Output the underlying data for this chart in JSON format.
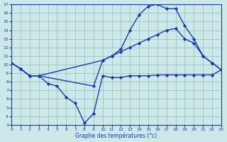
{
  "xlabel": "Graphe des températures (°c)",
  "ylim": [
    3,
    17
  ],
  "xlim": [
    0,
    23
  ],
  "yticks": [
    3,
    4,
    5,
    6,
    7,
    8,
    9,
    10,
    11,
    12,
    13,
    14,
    15,
    16,
    17
  ],
  "xticks": [
    0,
    1,
    2,
    3,
    4,
    5,
    6,
    7,
    8,
    9,
    10,
    11,
    12,
    13,
    14,
    15,
    16,
    17,
    18,
    19,
    20,
    21,
    22,
    23
  ],
  "bg_color": "#cce8e8",
  "line_color": "#1a3aaa",
  "grid_color": "#99bbbb",
  "curve_min": {
    "x": [
      0,
      1,
      2,
      3,
      4,
      5,
      6,
      7,
      8,
      9,
      10,
      11,
      12,
      13,
      14,
      15,
      16,
      17,
      18,
      19,
      20,
      21,
      22,
      23
    ],
    "y": [
      10.2,
      9.5,
      8.7,
      8.7,
      7.8,
      7.5,
      6.2,
      5.5,
      3.2,
      4.3,
      8.7,
      8.5,
      8.5,
      8.7,
      8.7,
      8.7,
      8.8,
      8.8,
      8.8,
      8.8,
      8.8,
      8.8,
      8.8,
      9.4
    ]
  },
  "curve_mid": {
    "x": [
      0,
      1,
      2,
      3,
      10,
      11,
      12,
      13,
      14,
      15,
      16,
      17,
      18,
      19,
      20,
      21,
      22,
      23
    ],
    "y": [
      10.2,
      9.5,
      8.7,
      8.7,
      10.5,
      11.0,
      11.5,
      12.0,
      12.5,
      13.0,
      13.5,
      14.0,
      14.2,
      13.0,
      12.5,
      11.0,
      10.2,
      9.4
    ]
  },
  "curve_max": {
    "x": [
      0,
      1,
      2,
      3,
      9,
      10,
      11,
      12,
      13,
      14,
      15,
      16,
      17,
      18,
      19,
      20,
      21,
      22,
      23
    ],
    "y": [
      10.2,
      9.5,
      8.7,
      8.7,
      7.5,
      10.5,
      11.0,
      11.8,
      14.0,
      15.8,
      16.8,
      17.0,
      16.5,
      16.5,
      14.5,
      13.0,
      11.0,
      10.2,
      9.4
    ]
  }
}
